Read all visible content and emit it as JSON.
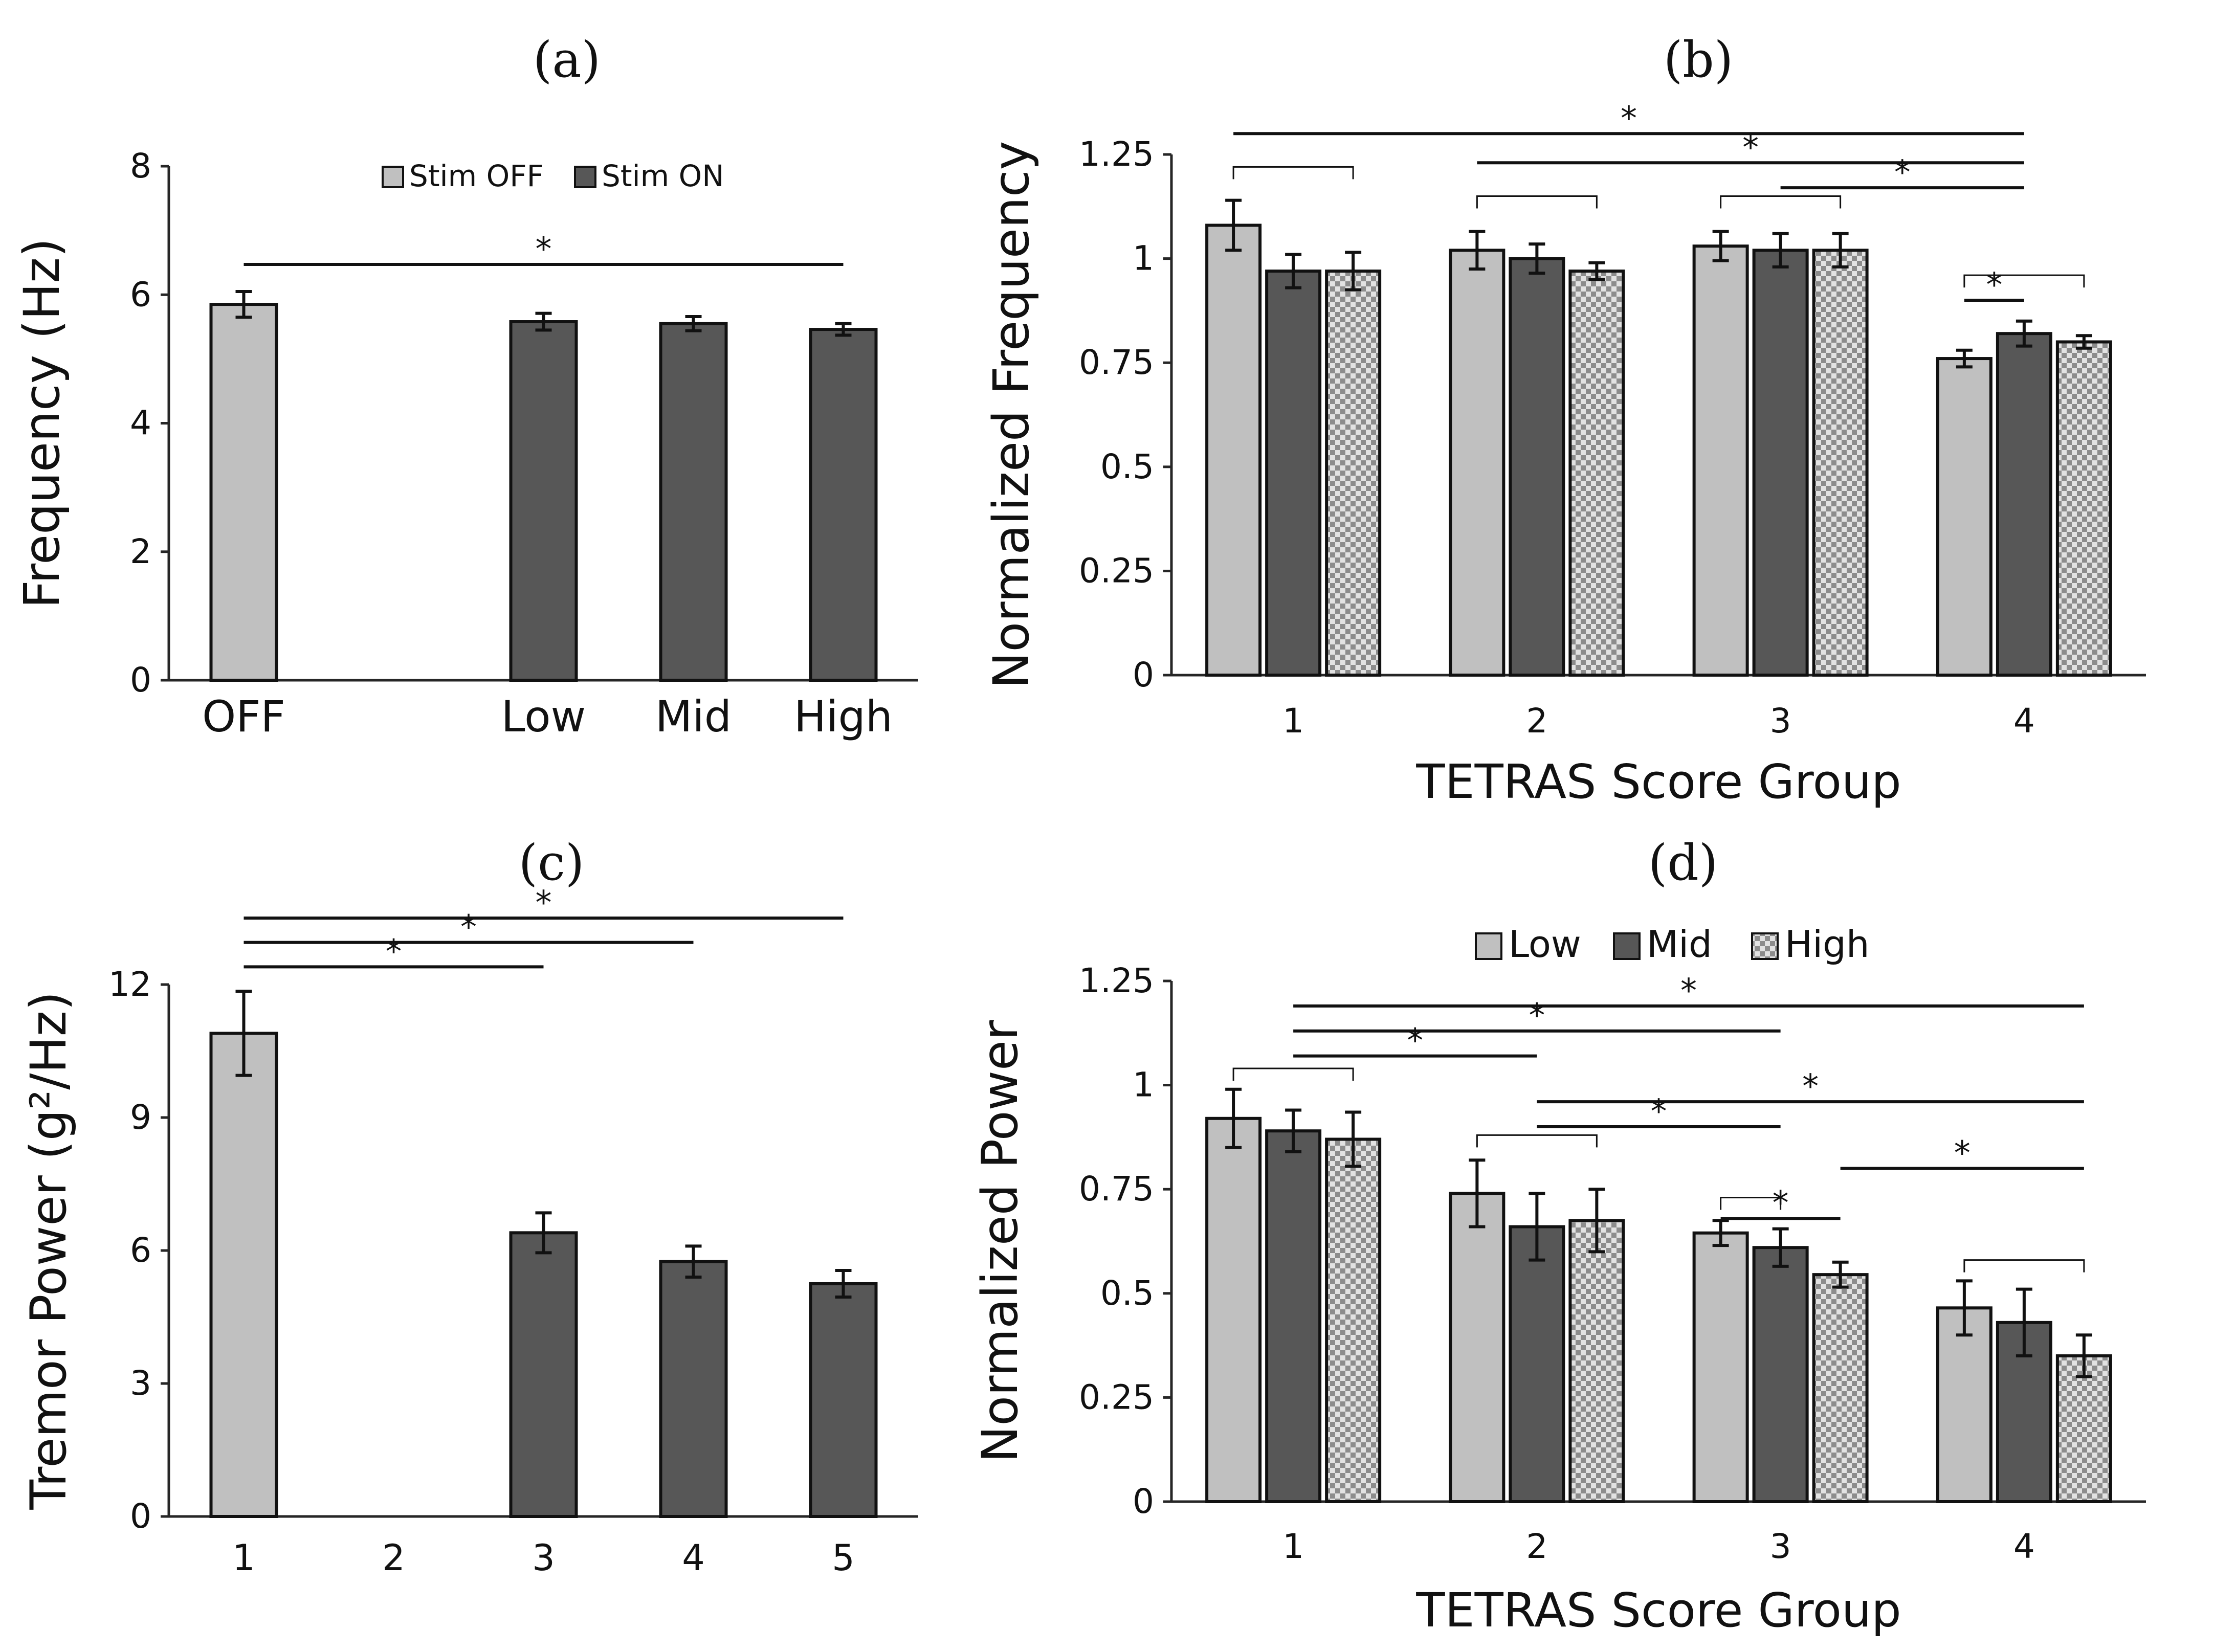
{
  "figure": {
    "colors": {
      "stim_off": "#c0c0c0",
      "stim_on": "#575757",
      "hatch_light": "#e2e2e2",
      "hatch_dark": "#8c8c8c",
      "axis": "#262626"
    }
  },
  "chart_data": [
    {
      "id": "a",
      "type": "bar",
      "panel_label": "(a)",
      "title": "",
      "xlabel": "",
      "ylabel": "Frequency (Hz)",
      "ylim": [
        0,
        8
      ],
      "yticks": [
        0,
        2,
        4,
        6,
        8
      ],
      "ytick_labels": [
        "0",
        "2",
        "4",
        "6",
        "8"
      ],
      "categories": [
        "OFF",
        "",
        "Low",
        "Mid",
        "High"
      ],
      "values": [
        5.85,
        null,
        5.58,
        5.55,
        5.46
      ],
      "errors": [
        0.2,
        null,
        0.13,
        0.11,
        0.09
      ],
      "series_of_bar": [
        "Stim OFF",
        null,
        "Stim ON",
        "Stim ON",
        "Stim ON"
      ],
      "legend": {
        "placement": "top-center",
        "entries": [
          {
            "label": "Stim OFF",
            "style": "light"
          },
          {
            "label": "Stim ON",
            "style": "dark"
          }
        ]
      },
      "significance": [
        {
          "from": 0,
          "to": 4,
          "label": "*"
        }
      ],
      "grid": false
    },
    {
      "id": "b",
      "type": "bar",
      "panel_label": "(b)",
      "title": "",
      "xlabel": "TETRAS Score Group",
      "ylabel": "Normalized Frequency",
      "ylim": [
        0,
        1.25
      ],
      "yticks": [
        0,
        0.25,
        0.5,
        0.75,
        1,
        1.25
      ],
      "ytick_labels": [
        "0",
        "0.25",
        "0.5",
        "0.75",
        "1",
        "1.25"
      ],
      "categories": [
        "1",
        "2",
        "3",
        "4"
      ],
      "series": [
        {
          "name": "Low",
          "style": "light",
          "values": [
            1.08,
            1.02,
            1.03,
            0.76
          ],
          "errors": [
            0.06,
            0.045,
            0.035,
            0.02
          ]
        },
        {
          "name": "Mid",
          "style": "dark",
          "values": [
            0.97,
            1.0,
            1.02,
            0.82
          ],
          "errors": [
            0.04,
            0.035,
            0.04,
            0.03
          ]
        },
        {
          "name": "High",
          "style": "hatch",
          "values": [
            0.97,
            0.97,
            1.02,
            0.8
          ],
          "errors": [
            0.045,
            0.02,
            0.04,
            0.015
          ]
        }
      ],
      "brackets": [
        {
          "group": 0,
          "from_bar": 0,
          "to_bar": 2,
          "y": 1.22
        },
        {
          "group": 1,
          "from_bar": 0,
          "to_bar": 2,
          "y": 1.15
        },
        {
          "group": 2,
          "from_bar": 0,
          "to_bar": 2,
          "y": 1.15
        },
        {
          "group": 3,
          "from_bar": 0,
          "to_bar": 2,
          "y": 0.96
        }
      ],
      "significance": [
        {
          "from": [
            0,
            0
          ],
          "to": [
            3,
            1
          ],
          "y": 1.3,
          "label": "*"
        },
        {
          "from": [
            1,
            0
          ],
          "to": [
            3,
            1
          ],
          "y": 1.23,
          "label": "*"
        },
        {
          "from": [
            2,
            1
          ],
          "to": [
            3,
            1
          ],
          "y": 1.17,
          "label": "*"
        },
        {
          "from": [
            3,
            0
          ],
          "to": [
            3,
            1
          ],
          "y": 0.9,
          "label": "*"
        }
      ],
      "grid": false
    },
    {
      "id": "c",
      "type": "bar",
      "panel_label": "(c)",
      "title": "",
      "xlabel": "",
      "ylabel": "Tremor Power (g²/Hz)",
      "ylim": [
        0,
        12
      ],
      "yticks": [
        0,
        3,
        6,
        9,
        12
      ],
      "ytick_labels": [
        "0",
        "3",
        "6",
        "9",
        "12"
      ],
      "categories": [
        "1",
        "2",
        "3",
        "4",
        "5"
      ],
      "values": [
        10.9,
        null,
        6.4,
        5.75,
        5.25
      ],
      "errors": [
        0.95,
        null,
        0.45,
        0.35,
        0.3
      ],
      "series_of_bar": [
        "Stim OFF",
        null,
        "Stim ON",
        "Stim ON",
        "Stim ON"
      ],
      "significance": [
        {
          "from": 0,
          "to": 2,
          "y": 12.4,
          "label": "*"
        },
        {
          "from": 0,
          "to": 3,
          "y": 12.95,
          "label": "*"
        },
        {
          "from": 0,
          "to": 4,
          "y": 13.5,
          "label": "*"
        }
      ],
      "grid": false
    },
    {
      "id": "d",
      "type": "bar",
      "panel_label": "(d)",
      "title": "",
      "xlabel": "TETRAS Score Group",
      "ylabel": "Normalized Power",
      "ylim": [
        0,
        1.25
      ],
      "yticks": [
        0,
        0.25,
        0.5,
        0.75,
        1,
        1.25
      ],
      "ytick_labels": [
        "0",
        "0.25",
        "0.5",
        "0.75",
        "1",
        "1.25"
      ],
      "categories": [
        "1",
        "2",
        "3",
        "4"
      ],
      "series": [
        {
          "name": "Low",
          "style": "light",
          "values": [
            0.92,
            0.74,
            0.645,
            0.465
          ],
          "errors": [
            0.07,
            0.08,
            0.03,
            0.065
          ]
        },
        {
          "name": "Mid",
          "style": "dark",
          "values": [
            0.89,
            0.66,
            0.61,
            0.43
          ],
          "errors": [
            0.05,
            0.08,
            0.045,
            0.08
          ]
        },
        {
          "name": "High",
          "style": "hatch",
          "values": [
            0.87,
            0.675,
            0.545,
            0.35
          ],
          "errors": [
            0.065,
            0.075,
            0.03,
            0.05
          ]
        }
      ],
      "legend": {
        "placement": "top-center",
        "entries": [
          {
            "label": "Low",
            "style": "light"
          },
          {
            "label": "Mid",
            "style": "dark"
          },
          {
            "label": "High",
            "style": "hatch"
          }
        ]
      },
      "brackets": [
        {
          "group": 0,
          "from_bar": 0,
          "to_bar": 2,
          "y": 1.04
        },
        {
          "group": 1,
          "from_bar": 0,
          "to_bar": 2,
          "y": 0.88
        },
        {
          "group": 2,
          "from_bar": 0,
          "to_bar": 1,
          "y": 0.73
        },
        {
          "group": 3,
          "from_bar": 0,
          "to_bar": 2,
          "y": 0.58
        }
      ],
      "significance": [
        {
          "from": [
            0,
            1
          ],
          "to": [
            1,
            1
          ],
          "y": 1.07,
          "label": "*"
        },
        {
          "from": [
            0,
            1
          ],
          "to": [
            2,
            1
          ],
          "y": 1.13,
          "label": "*"
        },
        {
          "from": [
            0,
            1
          ],
          "to": [
            3,
            2
          ],
          "y": 1.19,
          "label": "*"
        },
        {
          "from": [
            1,
            1
          ],
          "to": [
            3,
            2
          ],
          "y": 0.96,
          "label": "*"
        },
        {
          "from": [
            1,
            1
          ],
          "to": [
            2,
            1
          ],
          "y": 0.9,
          "label": "*"
        },
        {
          "from": [
            2,
            0
          ],
          "to": [
            2,
            2
          ],
          "y": 0.68,
          "label": "*"
        },
        {
          "from": [
            2,
            2
          ],
          "to": [
            3,
            2
          ],
          "y": 0.8,
          "label": "*"
        }
      ],
      "grid": false
    }
  ]
}
